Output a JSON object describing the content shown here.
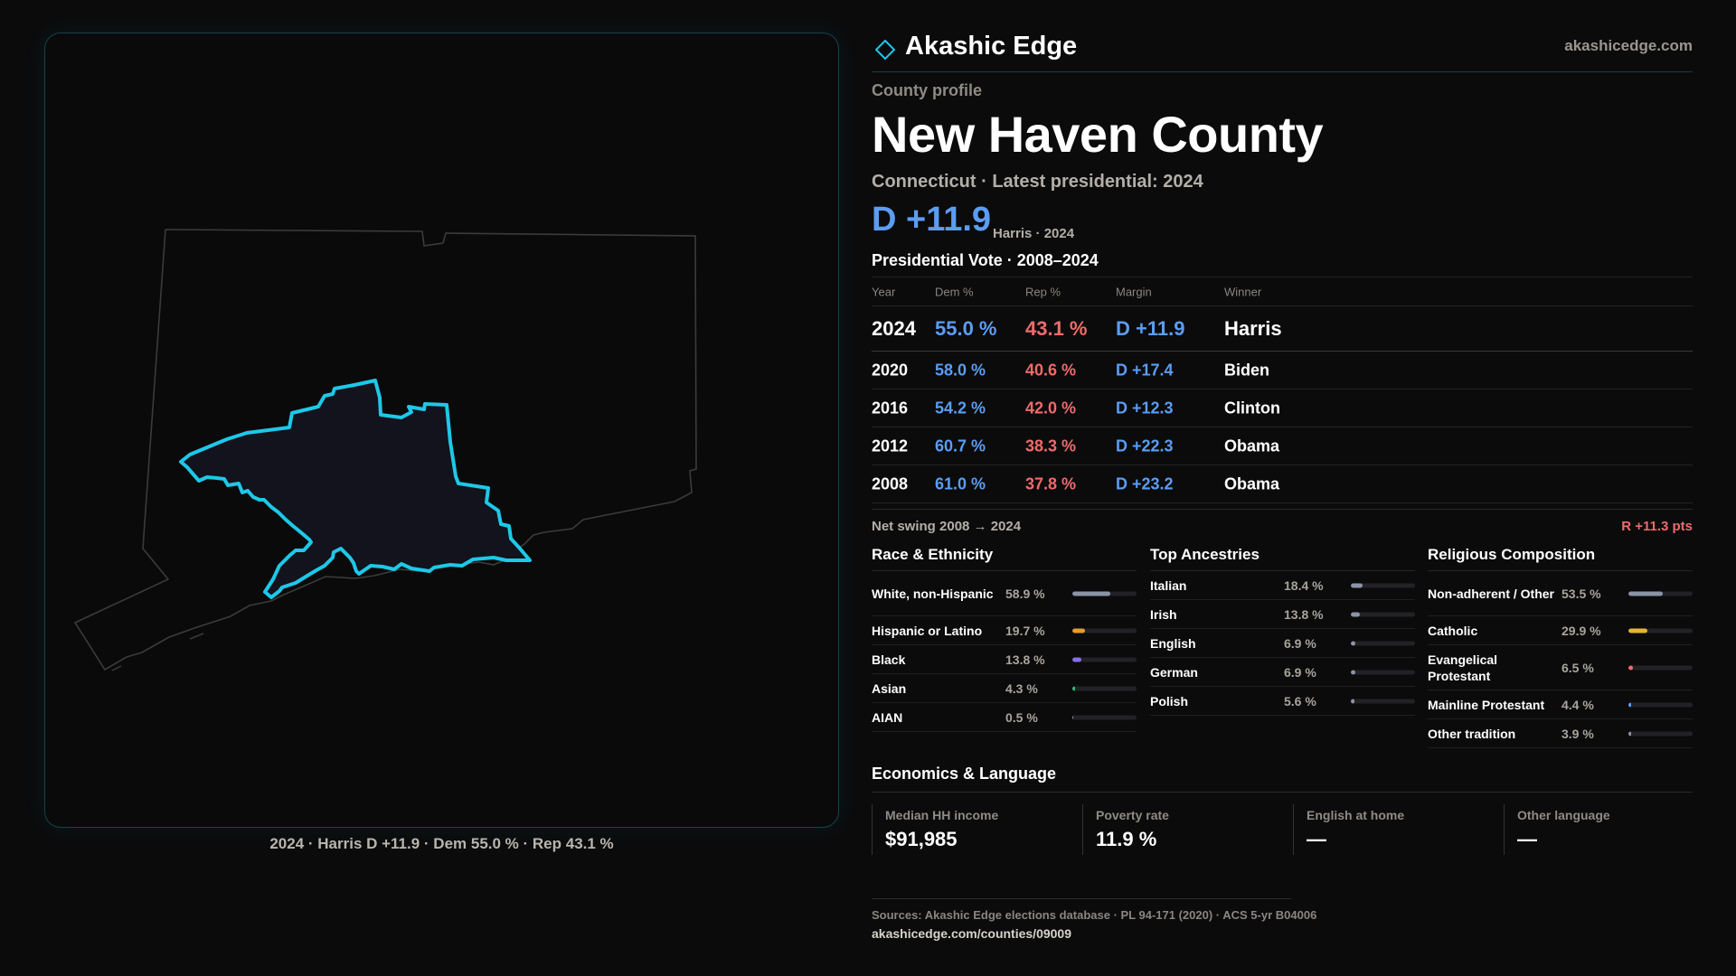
{
  "map": {
    "caption": "2024 · Harris D +11.9 · Dem 55.0 % · Rep 43.1 %",
    "highlight_color": "#1ec8e8"
  },
  "header": {
    "brand": "Akashic Edge",
    "url": "akashicedge.com"
  },
  "profile": {
    "kicker": "County profile",
    "name": "New Haven County",
    "subtitle": "Connecticut · Latest presidential: 2024",
    "margin": "D +11.9",
    "margin_note": "Harris · 2024"
  },
  "vote": {
    "title": "Presidential Vote · 2008–2024",
    "columns": [
      "Year",
      "Dem %",
      "Rep %",
      "Margin",
      "Winner"
    ],
    "rows": [
      {
        "year": "2024",
        "dem": "55.0 %",
        "rep": "43.1 %",
        "margin": "D +11.9",
        "winner": "Harris"
      },
      {
        "year": "2020",
        "dem": "58.0 %",
        "rep": "40.6 %",
        "margin": "D +17.4",
        "winner": "Biden"
      },
      {
        "year": "2016",
        "dem": "54.2 %",
        "rep": "42.0 %",
        "margin": "D +12.3",
        "winner": "Clinton"
      },
      {
        "year": "2012",
        "dem": "60.7 %",
        "rep": "38.3 %",
        "margin": "D +22.3",
        "winner": "Obama"
      },
      {
        "year": "2008",
        "dem": "61.0 %",
        "rep": "37.8 %",
        "margin": "D +23.2",
        "winner": "Obama"
      }
    ],
    "swing_label": "Net swing 2008 → 2024",
    "swing_value": "R +11.3 pts"
  },
  "race": {
    "title": "Race & Ethnicity",
    "items": [
      {
        "label": "White, non-Hispanic",
        "value": "58.9 %",
        "pct": 58.9,
        "color": "#8b93a6"
      },
      {
        "label": "Hispanic or Latino",
        "value": "19.7 %",
        "pct": 19.7,
        "color": "#e59a2f"
      },
      {
        "label": "Black",
        "value": "13.8 %",
        "pct": 13.8,
        "color": "#8a6ee8"
      },
      {
        "label": "Asian",
        "value": "4.3 %",
        "pct": 4.3,
        "color": "#2fbf7a"
      },
      {
        "label": "AIAN",
        "value": "0.5 %",
        "pct": 0.5,
        "color": "#8b93a6"
      }
    ]
  },
  "ancestry": {
    "title": "Top Ancestries",
    "items": [
      {
        "label": "Italian",
        "value": "18.4 %",
        "pct": 18.4,
        "color": "#8b93a6"
      },
      {
        "label": "Irish",
        "value": "13.8 %",
        "pct": 13.8,
        "color": "#8b93a6"
      },
      {
        "label": "English",
        "value": "6.9 %",
        "pct": 6.9,
        "color": "#8b93a6"
      },
      {
        "label": "German",
        "value": "6.9 %",
        "pct": 6.9,
        "color": "#8b93a6"
      },
      {
        "label": "Polish",
        "value": "5.6 %",
        "pct": 5.6,
        "color": "#8b93a6"
      }
    ]
  },
  "religion": {
    "title": "Religious Composition",
    "items": [
      {
        "label": "Non-adherent / Other",
        "value": "53.5 %",
        "pct": 53.5,
        "color": "#8b93a6"
      },
      {
        "label": "Catholic",
        "value": "29.9 %",
        "pct": 29.9,
        "color": "#e5b52f"
      },
      {
        "label": "Evangelical Protestant",
        "value": "6.5 %",
        "pct": 6.5,
        "color": "#ef6b6b"
      },
      {
        "label": "Mainline Protestant",
        "value": "4.4 %",
        "pct": 4.4,
        "color": "#5b9df2"
      },
      {
        "label": "Other tradition",
        "value": "3.9 %",
        "pct": 3.9,
        "color": "#8b93a6"
      }
    ]
  },
  "economics": {
    "title": "Economics & Language",
    "items": [
      {
        "label": "Median HH income",
        "value": "$91,985"
      },
      {
        "label": "Poverty rate",
        "value": "11.9 %"
      },
      {
        "label": "English at home",
        "value": "—"
      },
      {
        "label": "Other language",
        "value": "—"
      }
    ]
  },
  "footer": {
    "sources": "Sources: Akashic Edge elections database · PL 94-171 (2020) · ACS 5-yr B04006",
    "url": "akashicedge.com/counties/09009"
  }
}
